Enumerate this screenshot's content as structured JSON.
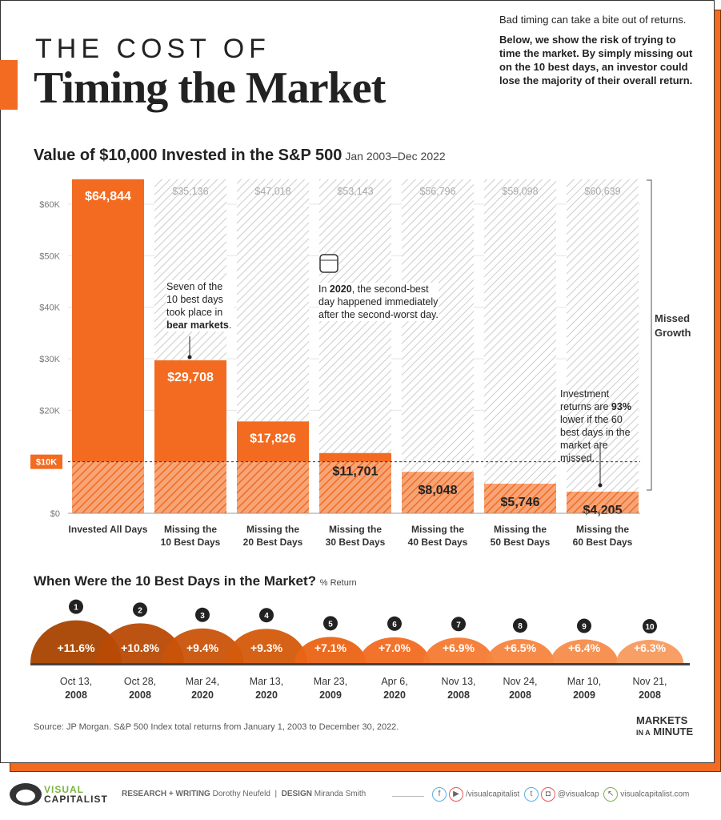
{
  "header": {
    "title_line1": "THE COST OF",
    "title_line2": "Timing the Market",
    "intro_line": "Bad timing can take a bite out of returns.",
    "intro_bold": "Below, we show the risk of trying to time the market. By simply missing out on the 10 best days, an investor could lose the majority of their overall return."
  },
  "chart_data": [
    {
      "type": "bar",
      "title": "Value of $10,000 Invested in the S&P 500",
      "subtitle": "Jan 2003–Dec 2022",
      "categories": [
        "Invested All Days",
        "Missing the 10 Best Days",
        "Missing the 20 Best Days",
        "Missing the 30 Best Days",
        "Missing the 40 Best Days",
        "Missing the 50 Best Days",
        "Missing the 60 Best Days"
      ],
      "category_lines": [
        [
          "Invested All Days",
          ""
        ],
        [
          "Missing the",
          "10 Best Days"
        ],
        [
          "Missing the",
          "20 Best Days"
        ],
        [
          "Missing the",
          "30 Best Days"
        ],
        [
          "Missing the",
          "40 Best Days"
        ],
        [
          "Missing the",
          "50 Best Days"
        ],
        [
          "Missing the",
          "60 Best Days"
        ]
      ],
      "values": [
        64844,
        29708,
        17826,
        11701,
        8048,
        5746,
        4205
      ],
      "value_labels": [
        "$64,844",
        "$29,708",
        "$17,826",
        "$11,701",
        "$8,048",
        "$5,746",
        "$4,205"
      ],
      "missed_labels": [
        "",
        "$35,136",
        "$47,018",
        "$53,143",
        "$56,796",
        "$59,098",
        "$60,639"
      ],
      "ylim": [
        0,
        65000
      ],
      "yticks": [
        0,
        10000,
        20000,
        30000,
        40000,
        50000,
        60000
      ],
      "ytick_labels": [
        "$0",
        "$10K",
        "$20K",
        "$30K",
        "$40K",
        "$50K",
        "$60K"
      ],
      "reference_line": {
        "value": 10000,
        "label": "$10K"
      },
      "bracket_label": "Missed Growth",
      "colors": {
        "bar": "#f26b21",
        "missed": "#cccccc",
        "reference": "#f26b21"
      }
    },
    {
      "type": "area",
      "title": "When Were the 10 Best Days in the Market?",
      "subtitle": "% Return",
      "ranks": [
        "1",
        "2",
        "3",
        "4",
        "5",
        "6",
        "7",
        "8",
        "9",
        "10"
      ],
      "values": [
        11.6,
        10.8,
        9.4,
        9.3,
        7.1,
        7.0,
        6.9,
        6.5,
        6.4,
        6.3
      ],
      "value_labels": [
        "+11.6%",
        "+10.8%",
        "+9.4%",
        "+9.3%",
        "+7.1%",
        "+7.0%",
        "+6.9%",
        "+6.5%",
        "+6.4%",
        "+6.3%"
      ],
      "dates": [
        [
          "Oct 13,",
          "2008"
        ],
        [
          "Oct 28,",
          "2008"
        ],
        [
          "Mar 24,",
          "2020"
        ],
        [
          "Mar 13,",
          "2020"
        ],
        [
          "Mar 23,",
          "2009"
        ],
        [
          "Apr 6,",
          "2020"
        ],
        [
          "Nov 13,",
          "2008"
        ],
        [
          "Nov 24,",
          "2008"
        ],
        [
          "Mar 10,",
          "2009"
        ],
        [
          "Nov 21,",
          "2008"
        ]
      ],
      "colors": [
        "#a84300",
        "#b84a05",
        "#c9530a",
        "#d45a0c",
        "#ea6415",
        "#f26b21",
        "#f47a33",
        "#f5853f",
        "#f68d4b",
        "#f89a5e"
      ]
    }
  ],
  "annotations": {
    "bear": [
      "Seven of the",
      "10 best days",
      "took place in"
    ],
    "bear_bold": "bear markets",
    "y2020_pre": "In ",
    "y2020_bold": "2020",
    "y2020_post": ", the second-best day happened immediately after the second-worst day.",
    "n93_pre": "Investment returns are ",
    "n93_bold": "93%",
    "n93_post": " lower if the 60 best days in the market are missed."
  },
  "source": "Source: JP Morgan. S&P 500 Index total returns from January 1, 2003 to December 30, 2022.",
  "mim": [
    "MARKETS",
    "IN A",
    "MINUTE"
  ],
  "footer": {
    "brand1": "VISUAL",
    "brand2": "CAPITALIST",
    "research_label": "RESEARCH + WRITING",
    "research_name": "Dorothy Neufeld",
    "design_label": "DESIGN",
    "design_name": "Miranda Smith",
    "handle1": "/visualcapitalist",
    "handle2": "@visualcap",
    "site": "visualcapitalist.com"
  }
}
